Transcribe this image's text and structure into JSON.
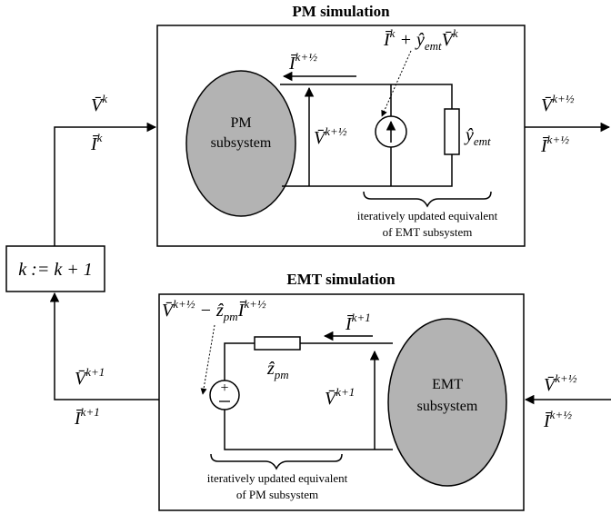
{
  "pm": {
    "title": "PM simulation",
    "subsystem": [
      "PM",
      "subsystem"
    ],
    "note": [
      "iteratively updated equivalent",
      "of EMT subsystem"
    ]
  },
  "emt": {
    "title": "EMT simulation",
    "subsystem": [
      "EMT",
      "subsystem"
    ],
    "note": [
      "iteratively updated equivalent",
      "of PM subsystem"
    ]
  },
  "counter": "k := k + 1",
  "labels": {
    "pm_in_v": [
      {
        "t": "V̄"
      },
      {
        "sup": "k"
      }
    ],
    "pm_in_i": [
      {
        "t": "Ī"
      },
      {
        "sup": "k"
      }
    ],
    "pm_out_v": [
      {
        "t": "V̄"
      },
      {
        "sup": "k+½"
      }
    ],
    "pm_out_i": [
      {
        "t": "Ī"
      },
      {
        "sup": "k+½"
      }
    ],
    "pm_current": [
      {
        "t": "Ī"
      },
      {
        "sup": "k+½"
      }
    ],
    "pm_voltage": [
      {
        "t": "V̄"
      },
      {
        "sup": "k+½"
      }
    ],
    "pm_source": [
      {
        "t": "Ī"
      },
      {
        "sup": "k"
      },
      {
        "t": " + ŷ"
      },
      {
        "sub": "emt"
      },
      {
        "t": "V̄"
      },
      {
        "sup": "k"
      }
    ],
    "pm_admittance": [
      {
        "t": "ŷ"
      },
      {
        "sub": "emt"
      }
    ],
    "emt_out_v": [
      {
        "t": "V̄"
      },
      {
        "sup": "k+1"
      }
    ],
    "emt_out_i": [
      {
        "t": "Ī"
      },
      {
        "sup": "k+1"
      }
    ],
    "emt_in_v": [
      {
        "t": "V̄"
      },
      {
        "sup": "k+½"
      }
    ],
    "emt_in_i": [
      {
        "t": "Ī"
      },
      {
        "sup": "k+½"
      }
    ],
    "emt_current": [
      {
        "t": "Ī"
      },
      {
        "sup": "k+1"
      }
    ],
    "emt_voltage": [
      {
        "t": "V̄"
      },
      {
        "sup": "k+1"
      }
    ],
    "emt_source": [
      {
        "t": "V̄"
      },
      {
        "sup": "k+½"
      },
      {
        "t": " − ẑ"
      },
      {
        "sub": "pm"
      },
      {
        "t": "Ī"
      },
      {
        "sup": "k+½"
      }
    ],
    "emt_impedance": [
      {
        "t": "ẑ"
      },
      {
        "sub": "pm"
      }
    ]
  }
}
